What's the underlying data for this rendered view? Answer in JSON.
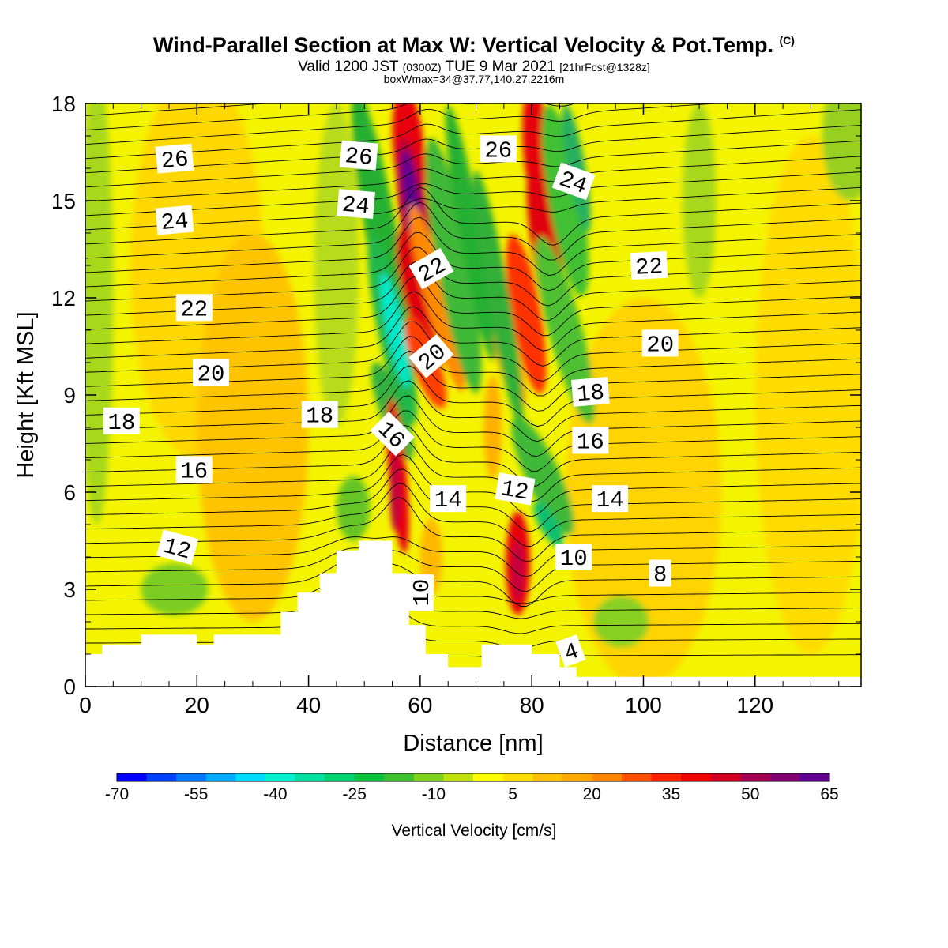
{
  "header": {
    "title": "Wind-Parallel Section at Max W: Vertical Velocity & Pot.Temp.",
    "copyright": "(C)",
    "valid_prefix": "Valid 1200 JST",
    "valid_utc": "(0300Z)",
    "valid_date": "TUE 9 Mar 2021",
    "fcst": "[21hrFcst@1328z]",
    "box": "boxWmax=34@37.77,140.27,2216m"
  },
  "chart_data": {
    "type": "heatmap",
    "xlabel": "Distance [nm]",
    "ylabel": "Height [Kft MSL]",
    "xlim": [
      0,
      139
    ],
    "ylim": [
      0,
      18
    ],
    "x_ticks": [
      0,
      20,
      40,
      60,
      80,
      100,
      120
    ],
    "y_ticks": [
      0,
      3,
      6,
      9,
      12,
      15,
      18
    ],
    "colorbar": {
      "label": "Vertical Velocity [cm/s]",
      "tick_labels": [
        "-70",
        "-55",
        "-40",
        "-25",
        "-10",
        "5",
        "20",
        "35",
        "50",
        "65"
      ],
      "colors": [
        "#0000ff",
        "#0040ff",
        "#0078ff",
        "#00aaff",
        "#00dcff",
        "#00f0d0",
        "#00e0a0",
        "#00d070",
        "#10c040",
        "#40c030",
        "#80d020",
        "#c0e010",
        "#ffff00",
        "#ffe000",
        "#ffc000",
        "#ffa800",
        "#ff8800",
        "#ff5000",
        "#ff2000",
        "#f00000",
        "#d00020",
        "#a00050",
        "#800070",
        "#600090"
      ]
    },
    "contour_levels_potential_temperature": [
      4,
      8,
      10,
      12,
      14,
      16,
      18,
      20,
      22,
      24,
      26
    ],
    "contour_labels": [
      {
        "text": "26",
        "x": 16,
        "y": 16.3,
        "rot": -5
      },
      {
        "text": "26",
        "x": 49,
        "y": 16.4,
        "rot": 5
      },
      {
        "text": "26",
        "x": 74,
        "y": 16.6,
        "rot": 0
      },
      {
        "text": "24",
        "x": 87.5,
        "y": 15.6,
        "rot": 20
      },
      {
        "text": "24",
        "x": 16,
        "y": 14.4,
        "rot": -5
      },
      {
        "text": "24",
        "x": 48.5,
        "y": 14.9,
        "rot": 5
      },
      {
        "text": "22",
        "x": 62,
        "y": 12.9,
        "rot": -30
      },
      {
        "text": "22",
        "x": 101,
        "y": 13.0,
        "rot": -3
      },
      {
        "text": "22",
        "x": 19.5,
        "y": 11.7,
        "rot": 0
      },
      {
        "text": "20",
        "x": 103,
        "y": 10.6,
        "rot": 0
      },
      {
        "text": "20",
        "x": 62,
        "y": 10.2,
        "rot": -40
      },
      {
        "text": "20",
        "x": 22.5,
        "y": 9.7,
        "rot": 0
      },
      {
        "text": "18",
        "x": 90.5,
        "y": 9.1,
        "rot": -5
      },
      {
        "text": "18",
        "x": 6.5,
        "y": 8.2,
        "rot": 0
      },
      {
        "text": "18",
        "x": 42,
        "y": 8.4,
        "rot": 0
      },
      {
        "text": "16",
        "x": 55,
        "y": 7.8,
        "rot": 45
      },
      {
        "text": "16",
        "x": 90.5,
        "y": 7.6,
        "rot": 0
      },
      {
        "text": "16",
        "x": 19.5,
        "y": 6.7,
        "rot": 0
      },
      {
        "text": "14",
        "x": 65,
        "y": 5.8,
        "rot": 0
      },
      {
        "text": "12",
        "x": 77,
        "y": 6.1,
        "rot": 10
      },
      {
        "text": "14",
        "x": 94,
        "y": 5.8,
        "rot": 0
      },
      {
        "text": "12",
        "x": 16.5,
        "y": 4.3,
        "rot": 15
      },
      {
        "text": "10",
        "x": 87.5,
        "y": 4.0,
        "rot": 0
      },
      {
        "text": "8",
        "x": 103,
        "y": 3.5,
        "rot": 0
      },
      {
        "text": "10",
        "x": 60,
        "y": 2.9,
        "rot": -90
      },
      {
        "text": "4",
        "x": 87,
        "y": 1.1,
        "rot": -20
      }
    ],
    "terrain_kft": [
      [
        0,
        1.0
      ],
      [
        3,
        1.0
      ],
      [
        3,
        1.3
      ],
      [
        10,
        1.3
      ],
      [
        10,
        1.6
      ],
      [
        20,
        1.6
      ],
      [
        20,
        1.3
      ],
      [
        23,
        1.3
      ],
      [
        23,
        1.6
      ],
      [
        35,
        1.6
      ],
      [
        35,
        2.3
      ],
      [
        38,
        2.3
      ],
      [
        38,
        2.9
      ],
      [
        42,
        2.9
      ],
      [
        42,
        3.5
      ],
      [
        45,
        3.5
      ],
      [
        45,
        4.2
      ],
      [
        49,
        4.2
      ],
      [
        49,
        4.5
      ],
      [
        55,
        4.5
      ],
      [
        55,
        3.5
      ],
      [
        58,
        3.5
      ],
      [
        58,
        1.9
      ],
      [
        61,
        1.9
      ],
      [
        61,
        1.0
      ],
      [
        65,
        1.0
      ],
      [
        65,
        0.6
      ],
      [
        71,
        0.6
      ],
      [
        71,
        1.3
      ],
      [
        80,
        1.3
      ],
      [
        80,
        1.0
      ],
      [
        85,
        1.0
      ],
      [
        85,
        0.6
      ],
      [
        88,
        0.6
      ],
      [
        88,
        0.3
      ],
      [
        139,
        0.3
      ]
    ],
    "updraft_max_cm_s": 65,
    "downdraft_min_cm_s": -40
  }
}
